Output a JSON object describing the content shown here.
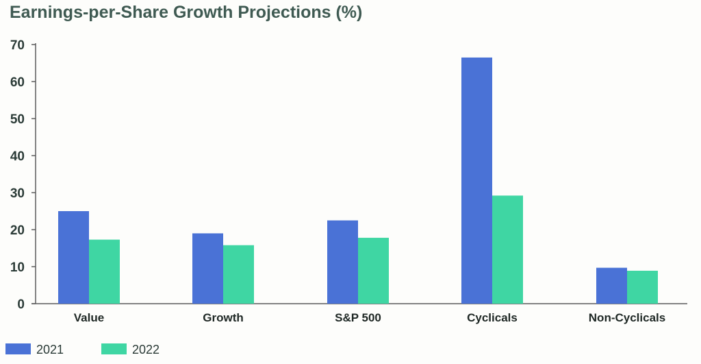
{
  "chart_data": {
    "type": "bar",
    "title": "Earnings-per-Share Growth Projections (%)",
    "xlabel": "",
    "ylabel": "",
    "categories": [
      "Value",
      "Growth",
      "S&P 500",
      "Cyclicals",
      "Non-Cyclicals"
    ],
    "series": [
      {
        "name": "2021",
        "color": "#4a72d6",
        "values": [
          25,
          19,
          22.5,
          66.5,
          9.7
        ]
      },
      {
        "name": "2022",
        "color": "#3fd6a3",
        "values": [
          17.3,
          15.8,
          17.8,
          29.2,
          8.9
        ]
      }
    ],
    "ylim": [
      0,
      70
    ],
    "yticks": [
      0,
      10,
      20,
      30,
      40,
      50,
      60,
      70
    ],
    "grid": false,
    "legend_position": "bottom-left"
  }
}
